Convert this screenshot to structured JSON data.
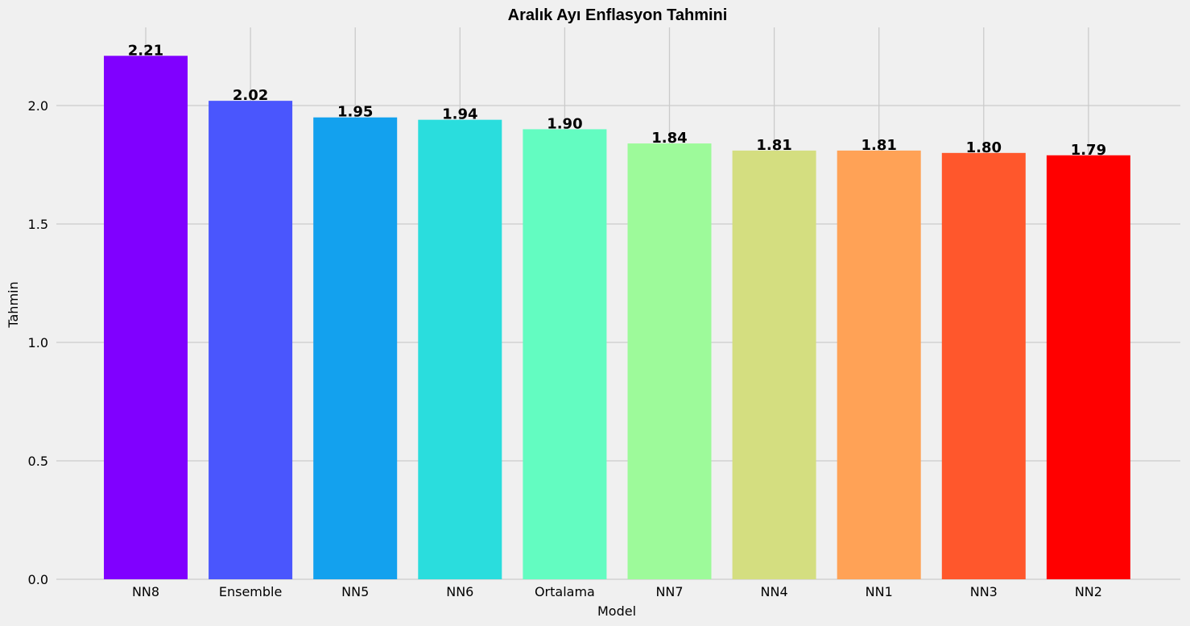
{
  "chart_data": {
    "type": "bar",
    "title": "Aralık Ayı Enflasyon Tahmini",
    "xlabel": "Model",
    "ylabel": "Tahmin",
    "categories": [
      "NN8",
      "Ensemble",
      "NN5",
      "NN6",
      "Ortalama",
      "NN7",
      "NN4",
      "NN1",
      "NN3",
      "NN2"
    ],
    "values": [
      2.21,
      2.02,
      1.95,
      1.94,
      1.9,
      1.84,
      1.81,
      1.81,
      1.8,
      1.79
    ],
    "value_labels": [
      "2.21",
      "2.02",
      "1.95",
      "1.94",
      "1.90",
      "1.84",
      "1.81",
      "1.81",
      "1.80",
      "1.79"
    ],
    "colors": [
      "#8000ff",
      "#4a56fd",
      "#13a1ee",
      "#2adddd",
      "#63fcc1",
      "#9dfa9a",
      "#d4de80",
      "#ffa256",
      "#ff572c",
      "#ff0000"
    ],
    "ylim": [
      0,
      2.33
    ],
    "yticks": [
      0.0,
      0.5,
      1.0,
      1.5,
      2.0
    ],
    "ytick_labels": [
      "0.0",
      "0.5",
      "1.0",
      "1.5",
      "2.0"
    ],
    "grid": true,
    "background": "#f0f0f0",
    "grid_color": "#cbcbcb"
  }
}
